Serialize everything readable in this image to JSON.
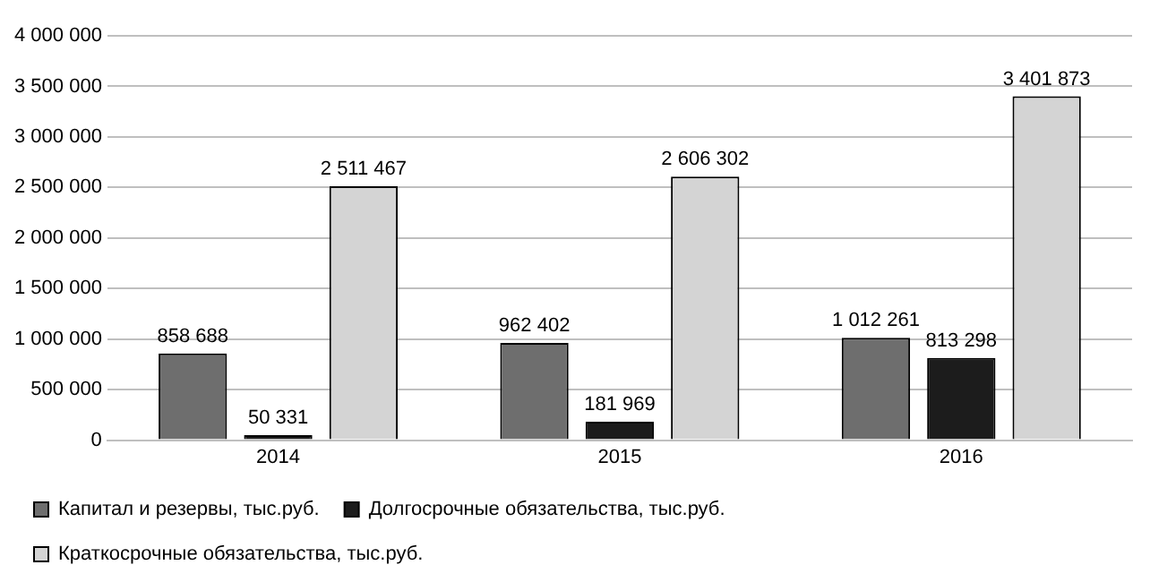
{
  "chart_data": {
    "type": "bar",
    "categories": [
      "2014",
      "2015",
      "2016"
    ],
    "series": [
      {
        "name": "Капитал и резервы, тыс.руб.",
        "color": "#6e6e6e",
        "values": [
          858688,
          962402,
          1012261
        ],
        "value_labels": [
          "858 688",
          "962 402",
          "1 012 261"
        ]
      },
      {
        "name": "Долгосрочные обязательства, тыс.руб.",
        "color": "#1c1c1c",
        "values": [
          50331,
          181969,
          813298
        ],
        "value_labels": [
          "50 331",
          "181 969",
          "813 298"
        ]
      },
      {
        "name": "Краткосрочные обязательства, тыс.руб.",
        "color": "#d4d4d4",
        "values": [
          2511467,
          2606302,
          3401873
        ],
        "value_labels": [
          "2 511 467",
          "2 606 302",
          "3 401 873"
        ]
      }
    ],
    "ylim": [
      0,
      4000000
    ],
    "yticks": [
      0,
      {
        "value": 500000,
        "label": "500 000"
      },
      {
        "value": 1000000,
        "label": "1 000 000"
      },
      {
        "value": 1500000,
        "label": "1 500 000"
      },
      {
        "value": 2000000,
        "label": "2 000 000"
      },
      {
        "value": 2500000,
        "label": "2 500 000"
      },
      {
        "value": 3000000,
        "label": "3 000 000"
      },
      {
        "value": 3500000,
        "label": "3 500 000"
      },
      {
        "value": 4000000,
        "label": "4 000 000"
      }
    ],
    "grid": "y",
    "legend": "bottom"
  }
}
